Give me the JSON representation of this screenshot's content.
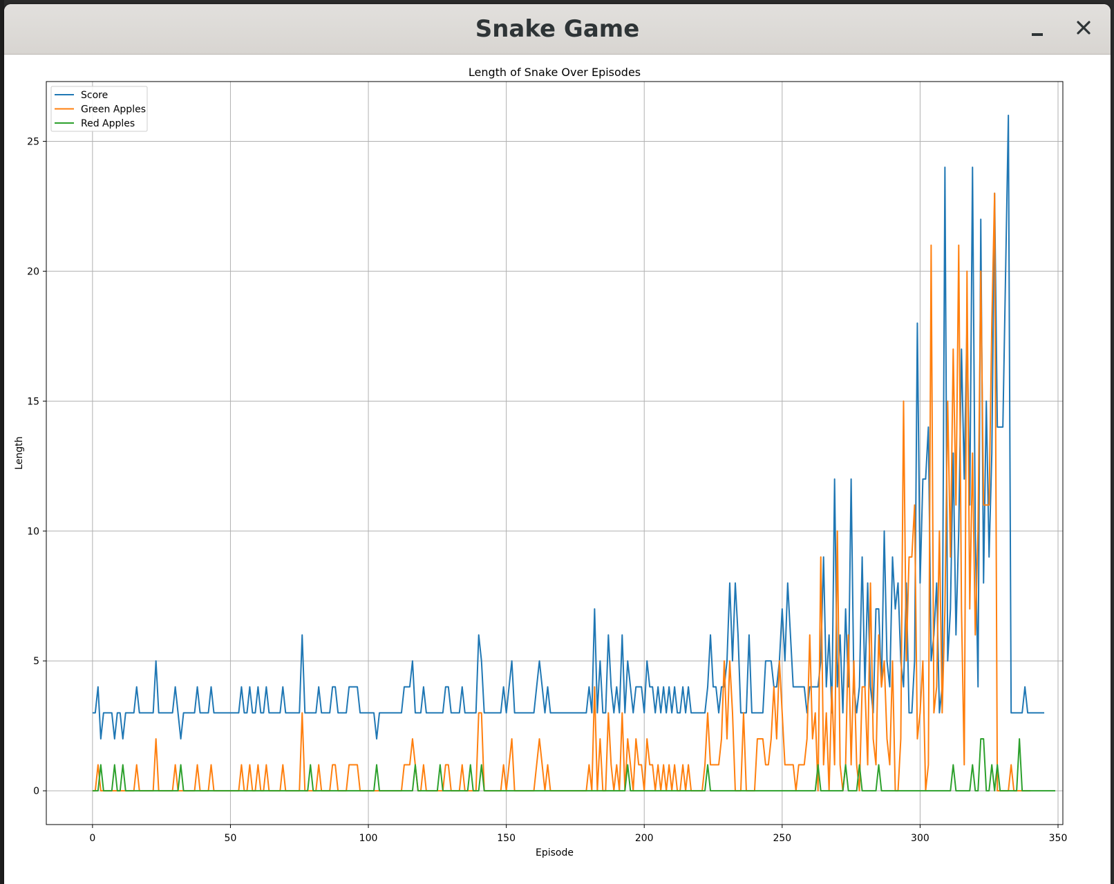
{
  "window": {
    "title": "Snake Game"
  },
  "icons": {
    "minimize": "minimize-icon",
    "close": "close-icon"
  },
  "chart_data": {
    "type": "line",
    "title": "Length of Snake Over Episodes",
    "xlabel": "Episode",
    "ylabel": "Length",
    "xlim": [
      -16.75,
      351.75
    ],
    "ylim": [
      -1.3,
      27.3
    ],
    "xticks": [
      0,
      50,
      100,
      150,
      200,
      250,
      300,
      350
    ],
    "yticks": [
      0,
      5,
      10,
      15,
      20,
      25
    ],
    "grid": true,
    "legend": "upper left",
    "series": [
      {
        "name": "Score",
        "color": "#1f77b4",
        "values": [
          3,
          3,
          4,
          2,
          3,
          3,
          3,
          3,
          2,
          3,
          3,
          2,
          3,
          3,
          3,
          3,
          4,
          3,
          3,
          3,
          3,
          3,
          3,
          5,
          3,
          3,
          3,
          3,
          3,
          3,
          4,
          3,
          2,
          3,
          3,
          3,
          3,
          3,
          4,
          3,
          3,
          3,
          3,
          4,
          3,
          3,
          3,
          3,
          3,
          3,
          3,
          3,
          3,
          3,
          4,
          3,
          3,
          4,
          3,
          3,
          4,
          3,
          3,
          4,
          3,
          3,
          3,
          3,
          3,
          4,
          3,
          3,
          3,
          3,
          3,
          3,
          6,
          3,
          3,
          3,
          3,
          3,
          4,
          3,
          3,
          3,
          3,
          4,
          4,
          3,
          3,
          3,
          3,
          4,
          4,
          4,
          4,
          3,
          3,
          3,
          3,
          3,
          3,
          2,
          3,
          3,
          3,
          3,
          3,
          3,
          3,
          3,
          3,
          4,
          4,
          4,
          5,
          3,
          3,
          3,
          4,
          3,
          3,
          3,
          3,
          3,
          3,
          3,
          4,
          4,
          3,
          3,
          3,
          3,
          4,
          3,
          3,
          3,
          3,
          3,
          6,
          5,
          3,
          3,
          3,
          3,
          3,
          3,
          3,
          4,
          3,
          4,
          5,
          3,
          3,
          3,
          3,
          3,
          3,
          3,
          3,
          4,
          5,
          4,
          3,
          4,
          3,
          3,
          3,
          3,
          3,
          3,
          3,
          3,
          3,
          3,
          3,
          3,
          3,
          3,
          4,
          3,
          7,
          3,
          5,
          3,
          3,
          6,
          4,
          3,
          4,
          3,
          6,
          3,
          5,
          4,
          3,
          4,
          4,
          4,
          3,
          5,
          4,
          4,
          3,
          4,
          3,
          4,
          3,
          4,
          3,
          4,
          3,
          3,
          4,
          3,
          4,
          3,
          3,
          3,
          3,
          3,
          3,
          4,
          6,
          4,
          4,
          3,
          4,
          4,
          5,
          8,
          5,
          8,
          6,
          3,
          3,
          3,
          6,
          3,
          3,
          3,
          3,
          3,
          5,
          5,
          5,
          4,
          4,
          5,
          7,
          5,
          8,
          6,
          4,
          4,
          4,
          4,
          4,
          3,
          4,
          4,
          4,
          4,
          5,
          9,
          4,
          6,
          3,
          12,
          4,
          6,
          3,
          7,
          4,
          12,
          4,
          3,
          4,
          9,
          4,
          8,
          4,
          3,
          7,
          7,
          4,
          10,
          5,
          4,
          9,
          7,
          8,
          5,
          4,
          8,
          3,
          3,
          5,
          18,
          8,
          12,
          12,
          14,
          5,
          6,
          8,
          3,
          4,
          24,
          5,
          7,
          13,
          6,
          10,
          17,
          12,
          18,
          11,
          24,
          10,
          4,
          22,
          8,
          15,
          9,
          13,
          23,
          14,
          14,
          14,
          20,
          26,
          3,
          3,
          3,
          3,
          3,
          4,
          3,
          3,
          3,
          3,
          3,
          3,
          3
        ]
      },
      {
        "name": "Green Apples",
        "color": "#ff7f0e",
        "values": [
          0,
          0,
          1,
          0,
          0,
          0,
          0,
          0,
          0,
          0,
          0,
          0,
          0,
          0,
          0,
          0,
          1,
          0,
          0,
          0,
          0,
          0,
          0,
          2,
          0,
          0,
          0,
          0,
          0,
          0,
          1,
          0,
          0,
          0,
          0,
          0,
          0,
          0,
          1,
          0,
          0,
          0,
          0,
          1,
          0,
          0,
          0,
          0,
          0,
          0,
          0,
          0,
          0,
          0,
          1,
          0,
          0,
          1,
          0,
          0,
          1,
          0,
          0,
          1,
          0,
          0,
          0,
          0,
          0,
          1,
          0,
          0,
          0,
          0,
          0,
          0,
          3,
          0,
          0,
          0,
          0,
          0,
          1,
          0,
          0,
          0,
          0,
          1,
          1,
          0,
          0,
          0,
          0,
          1,
          1,
          1,
          1,
          0,
          0,
          0,
          0,
          0,
          0,
          0,
          0,
          0,
          0,
          0,
          0,
          0,
          0,
          0,
          0,
          1,
          1,
          1,
          2,
          1,
          0,
          0,
          1,
          0,
          0,
          0,
          0,
          0,
          0,
          0,
          1,
          1,
          0,
          0,
          0,
          0,
          1,
          0,
          0,
          0,
          0,
          0,
          3,
          3,
          0,
          0,
          0,
          0,
          0,
          0,
          0,
          1,
          0,
          1,
          2,
          0,
          0,
          0,
          0,
          0,
          0,
          0,
          0,
          1,
          2,
          1,
          0,
          1,
          0,
          0,
          0,
          0,
          0,
          0,
          0,
          0,
          0,
          0,
          0,
          0,
          0,
          0,
          1,
          0,
          4,
          0,
          2,
          0,
          0,
          3,
          1,
          0,
          1,
          0,
          3,
          0,
          2,
          1,
          0,
          2,
          1,
          1,
          0,
          2,
          1,
          1,
          0,
          1,
          0,
          1,
          0,
          1,
          0,
          1,
          0,
          0,
          1,
          0,
          1,
          0,
          0,
          0,
          0,
          0,
          1,
          3,
          1,
          1,
          1,
          1,
          2,
          5,
          2,
          5,
          3,
          0,
          0,
          0,
          3,
          0,
          0,
          0,
          0,
          2,
          2,
          2,
          1,
          1,
          2,
          4,
          2,
          5,
          3,
          1,
          1,
          1,
          1,
          0,
          1,
          1,
          1,
          2,
          6,
          2,
          3,
          0,
          9,
          1,
          3,
          0,
          4,
          1,
          10,
          1,
          0,
          1,
          6,
          1,
          5,
          1,
          0,
          4,
          4,
          1,
          8,
          2,
          1,
          6,
          4,
          5,
          2,
          1,
          5,
          0,
          0,
          2,
          15,
          5,
          9,
          9,
          11,
          2,
          3,
          5,
          0,
          1,
          21,
          3,
          4,
          10,
          3,
          7,
          15,
          9,
          17,
          11,
          21,
          7,
          1,
          20,
          7,
          13,
          6,
          10,
          20,
          11,
          11,
          11,
          18,
          23,
          0,
          0,
          0,
          0,
          0,
          1,
          0,
          0,
          0,
          0,
          0,
          0,
          0
        ]
      },
      {
        "name": "Red Apples",
        "color": "#2ca02c",
        "values": [
          0,
          0,
          0,
          1,
          0,
          0,
          0,
          0,
          1,
          0,
          0,
          1,
          0,
          0,
          0,
          0,
          0,
          0,
          0,
          0,
          0,
          0,
          0,
          0,
          0,
          0,
          0,
          0,
          0,
          0,
          0,
          0,
          1,
          0,
          0,
          0,
          0,
          0,
          0,
          0,
          0,
          0,
          0,
          0,
          0,
          0,
          0,
          0,
          0,
          0,
          0,
          0,
          0,
          0,
          0,
          0,
          0,
          0,
          0,
          0,
          0,
          0,
          0,
          0,
          0,
          0,
          0,
          0,
          0,
          0,
          0,
          0,
          0,
          0,
          0,
          0,
          0,
          0,
          0,
          1,
          0,
          0,
          0,
          0,
          0,
          0,
          0,
          0,
          0,
          0,
          0,
          0,
          0,
          0,
          0,
          0,
          0,
          0,
          0,
          0,
          0,
          0,
          0,
          1,
          0,
          0,
          0,
          0,
          0,
          0,
          0,
          0,
          0,
          0,
          0,
          0,
          0,
          1,
          0,
          0,
          0,
          0,
          0,
          0,
          0,
          0,
          1,
          0,
          0,
          0,
          0,
          0,
          0,
          0,
          0,
          0,
          0,
          1,
          0,
          0,
          0,
          1,
          0,
          0,
          0,
          0,
          0,
          0,
          0,
          0,
          0,
          0,
          0,
          0,
          0,
          0,
          0,
          0,
          0,
          0,
          0,
          0,
          0,
          0,
          0,
          0,
          0,
          0,
          0,
          0,
          0,
          0,
          0,
          0,
          0,
          0,
          0,
          0,
          0,
          0,
          0,
          0,
          0,
          0,
          0,
          0,
          0,
          0,
          0,
          0,
          0,
          0,
          0,
          0,
          1,
          0,
          0,
          0,
          0,
          0,
          0,
          0,
          0,
          0,
          0,
          0,
          0,
          0,
          0,
          0,
          0,
          0,
          0,
          0,
          0,
          0,
          0,
          0,
          0,
          0,
          0,
          0,
          0,
          1,
          0,
          0,
          0,
          0,
          0,
          0,
          0,
          0,
          0,
          0,
          0,
          0,
          0,
          0,
          0,
          0,
          0,
          0,
          0,
          0,
          0,
          0,
          0,
          0,
          0,
          0,
          0,
          0,
          0,
          0,
          0,
          0,
          0,
          0,
          0,
          0,
          0,
          0,
          0,
          1,
          0,
          0,
          0,
          0,
          0,
          0,
          0,
          0,
          0,
          1,
          0,
          0,
          0,
          0,
          1,
          0,
          0,
          0,
          0,
          0,
          0,
          1,
          0,
          0,
          0,
          0,
          0,
          0,
          0,
          0,
          0,
          0,
          0,
          0,
          0,
          0,
          0,
          0,
          0,
          0,
          0,
          0,
          0,
          0,
          0,
          0,
          0,
          0,
          1,
          0,
          0,
          0,
          0,
          0,
          0,
          1,
          0,
          0,
          2,
          2,
          0,
          0,
          1,
          0,
          1,
          0,
          0,
          0,
          0,
          0,
          0,
          0,
          2,
          0,
          0,
          0,
          0,
          0,
          0,
          0,
          0,
          0,
          0,
          0,
          0,
          0
        ]
      }
    ]
  }
}
